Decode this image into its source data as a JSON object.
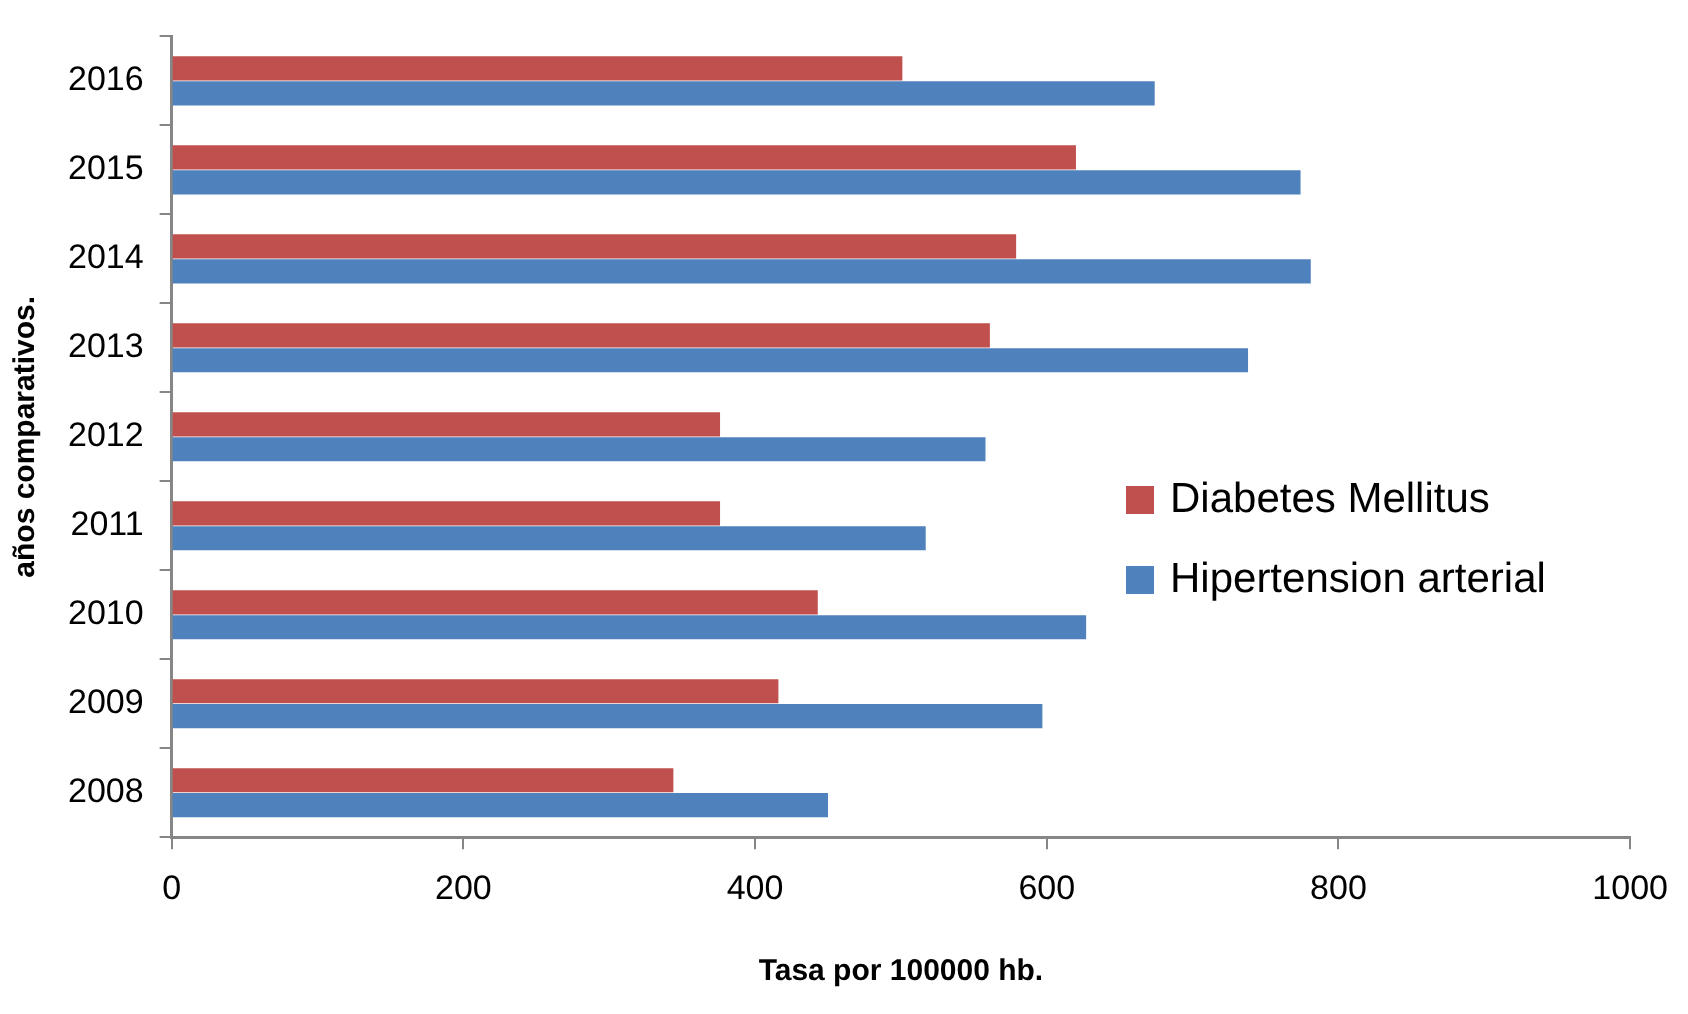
{
  "chart_data": {
    "type": "bar",
    "orientation": "horizontal",
    "xlabel": "Tasa por 100000 hb.",
    "ylabel": "años comparativos.",
    "categories": [
      "2016",
      "2015",
      "2014",
      "2013",
      "2012",
      "2011",
      "2010",
      "2009",
      "2008"
    ],
    "series": [
      {
        "name": "Diabetes Mellitus",
        "color": "#c0504d",
        "values": [
          501,
          620,
          579,
          561,
          376,
          376,
          443,
          416,
          344
        ]
      },
      {
        "name": "Hipertension arterial",
        "color": "#4f81bd",
        "values": [
          674,
          774,
          781,
          738,
          558,
          517,
          627,
          597,
          450
        ]
      }
    ],
    "xlim": [
      0,
      1000
    ],
    "xticks": [
      0,
      200,
      400,
      600,
      800,
      1000
    ],
    "grid": false,
    "legend": "right"
  }
}
